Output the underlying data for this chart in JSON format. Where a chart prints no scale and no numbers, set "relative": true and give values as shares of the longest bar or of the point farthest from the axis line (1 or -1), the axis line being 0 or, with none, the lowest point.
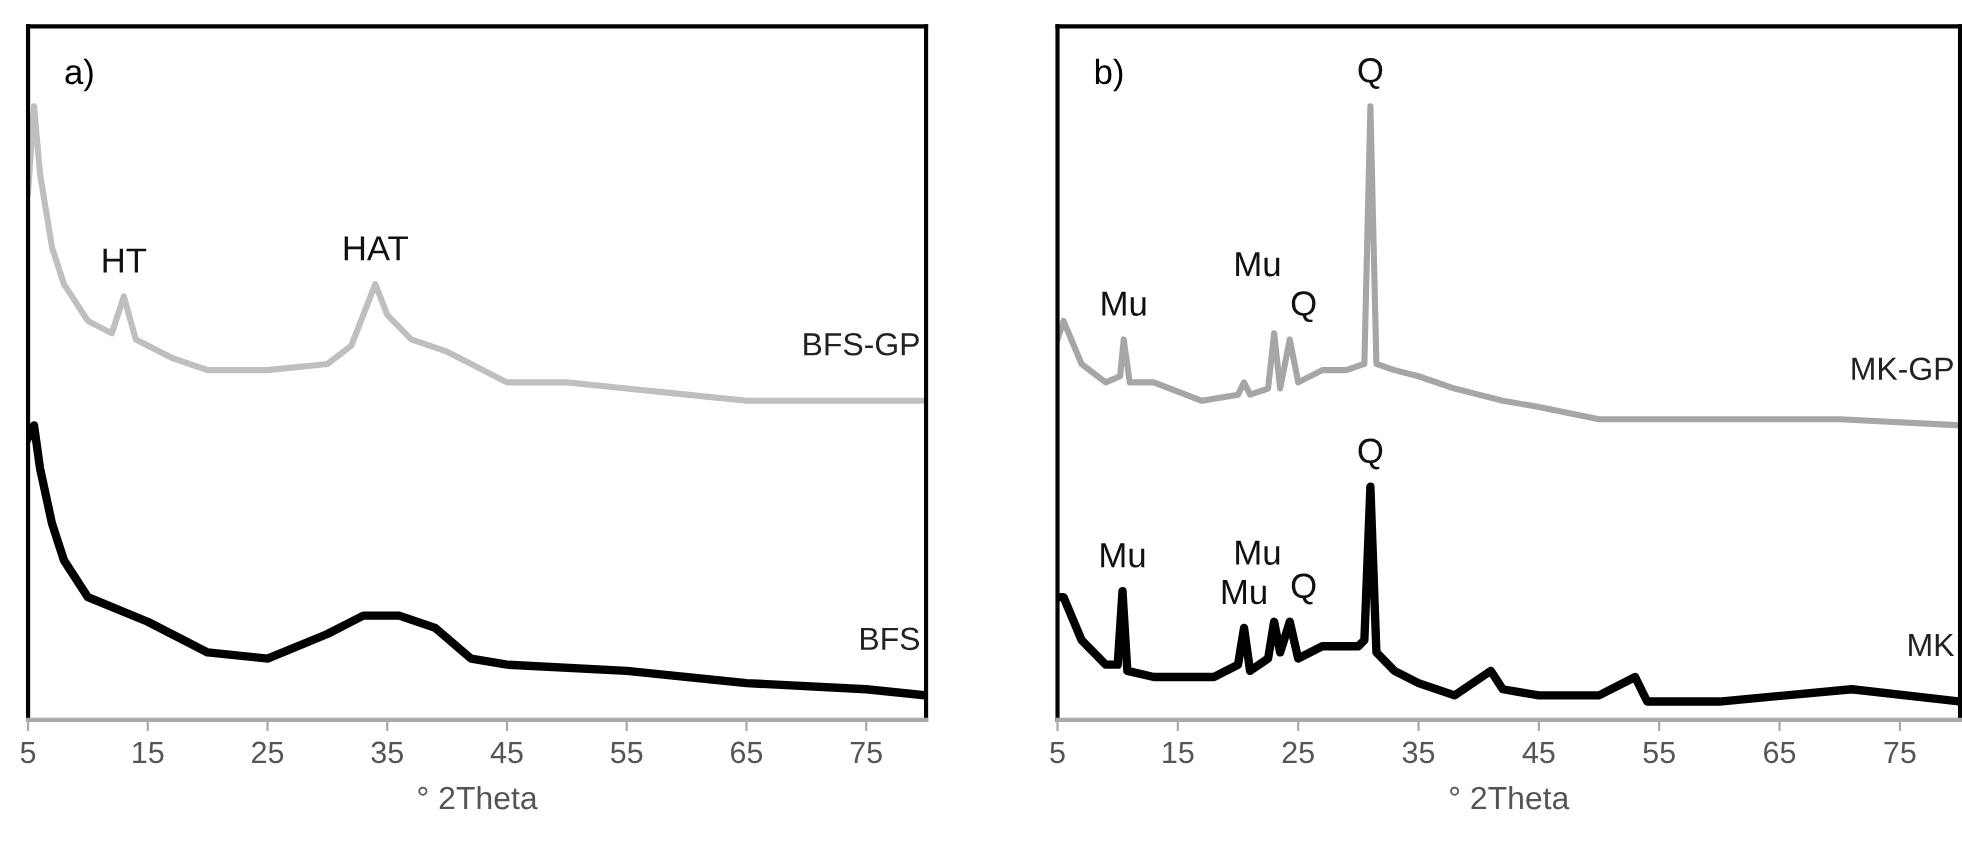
{
  "chart_data": [
    {
      "type": "line",
      "relative": true,
      "xlabel": "° 2Theta",
      "xlim": [
        5,
        80
      ],
      "xticks": [
        5,
        15,
        25,
        35,
        45,
        55,
        65,
        75
      ],
      "tick_labels": "x",
      "grid": false,
      "legend": false,
      "annotations": [
        "a)",
        {
          "text": "HT",
          "x": 13,
          "y": 0.69
        },
        {
          "text": "HAT",
          "x": 34,
          "y": 0.71
        }
      ],
      "series": [
        {
          "name": "BFS-GP",
          "color": "#bfbfbf",
          "x": [
            5,
            5.5,
            6,
            7,
            8,
            10,
            11,
            12,
            13,
            14,
            17,
            20,
            25,
            30,
            32,
            34,
            35,
            37,
            40,
            45,
            50,
            55,
            60,
            65,
            70,
            75,
            80
          ],
          "values": [
            0.86,
            1.0,
            0.89,
            0.77,
            0.71,
            0.65,
            0.64,
            0.63,
            0.69,
            0.62,
            0.59,
            0.57,
            0.57,
            0.58,
            0.61,
            0.71,
            0.66,
            0.62,
            0.6,
            0.55,
            0.55,
            0.54,
            0.53,
            0.52,
            0.52,
            0.52,
            0.52
          ]
        },
        {
          "name": "BFS",
          "color": "#000000",
          "x": [
            5,
            5.5,
            6,
            7,
            8,
            10,
            15,
            20,
            25,
            30,
            33,
            36,
            39,
            42,
            45,
            55,
            65,
            75,
            80
          ],
          "values": [
            0.46,
            0.48,
            0.41,
            0.32,
            0.26,
            0.2,
            0.16,
            0.11,
            0.1,
            0.14,
            0.17,
            0.17,
            0.15,
            0.1,
            0.09,
            0.08,
            0.06,
            0.05,
            0.04
          ]
        }
      ]
    },
    {
      "type": "line",
      "relative": true,
      "xlabel": "° 2Theta",
      "xlim": [
        5,
        80
      ],
      "xticks": [
        5,
        15,
        25,
        35,
        45,
        55,
        65,
        75
      ],
      "tick_labels": "x",
      "grid": false,
      "legend": false,
      "annotations": [
        "b)",
        {
          "text": "Q",
          "x": 31,
          "y": 1.0
        },
        {
          "text": "Mu",
          "x": 10.5,
          "y": 0.62
        },
        {
          "text": "Mu",
          "x": 23,
          "y": 0.63
        },
        {
          "text": "Q",
          "x": 24.3,
          "y": 0.62
        },
        {
          "text": "Q",
          "x": 31,
          "y": 0.38
        },
        {
          "text": "Mu",
          "x": 10.4,
          "y": 0.21
        },
        {
          "text": "Mu",
          "x": 20.5,
          "y": 0.15
        },
        {
          "text": "Mu",
          "x": 23,
          "y": 0.16
        },
        {
          "text": "Q",
          "x": 24.3,
          "y": 0.16
        }
      ],
      "series": [
        {
          "name": "MK-GP",
          "color": "#a6a6a6",
          "x": [
            5,
            5.5,
            7,
            9,
            10.2,
            10.5,
            11,
            13,
            17,
            20,
            20.5,
            21,
            22.5,
            23,
            23.5,
            24.3,
            25,
            27,
            29,
            30.5,
            31,
            31.5,
            33,
            35,
            38,
            40,
            42,
            45,
            50,
            55,
            60,
            70,
            80
          ],
          "values": [
            0.62,
            0.65,
            0.58,
            0.55,
            0.56,
            0.62,
            0.55,
            0.55,
            0.52,
            0.53,
            0.55,
            0.53,
            0.54,
            0.63,
            0.54,
            0.62,
            0.55,
            0.57,
            0.57,
            0.58,
            1.0,
            0.58,
            0.57,
            0.56,
            0.54,
            0.53,
            0.52,
            0.51,
            0.49,
            0.49,
            0.49,
            0.49,
            0.48
          ]
        },
        {
          "name": "MK",
          "color": "#000000",
          "x": [
            5,
            5.5,
            7,
            9,
            10,
            10.4,
            10.8,
            13,
            18,
            20,
            20.5,
            21,
            22.5,
            23,
            23.5,
            24.3,
            25,
            27,
            30,
            30.5,
            31,
            31.5,
            33,
            35,
            38,
            41,
            42,
            45,
            50,
            53,
            54,
            60,
            71,
            80
          ],
          "values": [
            0.2,
            0.2,
            0.13,
            0.09,
            0.09,
            0.21,
            0.08,
            0.07,
            0.07,
            0.09,
            0.15,
            0.08,
            0.1,
            0.16,
            0.11,
            0.16,
            0.1,
            0.12,
            0.12,
            0.13,
            0.38,
            0.11,
            0.08,
            0.06,
            0.04,
            0.08,
            0.05,
            0.04,
            0.04,
            0.07,
            0.03,
            0.03,
            0.05,
            0.03
          ]
        }
      ]
    }
  ]
}
